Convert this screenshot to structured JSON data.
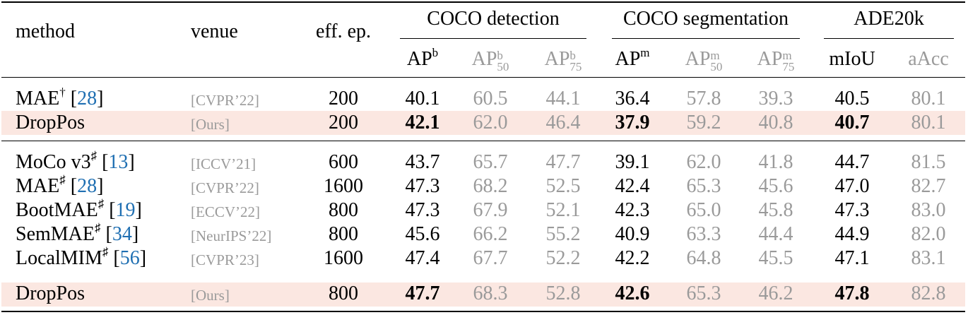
{
  "header": {
    "method": "method",
    "venue": "venue",
    "eff_ep": "eff. ep.",
    "groups": [
      "COCO detection",
      "COCO segmentation",
      "ADE20k"
    ],
    "metrics": [
      {
        "base": "AP",
        "sup": "b",
        "sub": ""
      },
      {
        "base": "AP",
        "sup": "b",
        "sub": "50"
      },
      {
        "base": "AP",
        "sup": "b",
        "sub": "75"
      },
      {
        "base": "AP",
        "sup": "m",
        "sub": ""
      },
      {
        "base": "AP",
        "sup": "m",
        "sub": "50"
      },
      {
        "base": "AP",
        "sup": "m",
        "sub": "75"
      },
      {
        "base": "mIoU",
        "sup": "",
        "sub": ""
      },
      {
        "base": "aAcc",
        "sup": "",
        "sub": ""
      }
    ]
  },
  "rows": [
    {
      "name": "MAE",
      "mark": "†",
      "ref": "28",
      "venue": "[CVPR’22]",
      "ep": "200",
      "vals": [
        "40.1",
        "60.5",
        "44.1",
        "36.4",
        "57.8",
        "39.3",
        "40.5",
        "80.1"
      ],
      "highlight": false
    },
    {
      "name": "DropPos",
      "mark": "",
      "ref": "",
      "venue": "[Ours]",
      "ep": "200",
      "vals": [
        "42.1",
        "62.0",
        "46.4",
        "37.9",
        "59.2",
        "40.8",
        "40.7",
        "80.1"
      ],
      "highlight": true
    },
    {
      "name": "MoCo v3",
      "mark": "♯",
      "ref": "13",
      "venue": "[ICCV’21]",
      "ep": "600",
      "vals": [
        "43.7",
        "65.7",
        "47.7",
        "39.1",
        "62.0",
        "41.8",
        "44.7",
        "81.5"
      ],
      "highlight": false
    },
    {
      "name": "MAE",
      "mark": "♯",
      "ref": "28",
      "venue": "[CVPR’22]",
      "ep": "1600",
      "vals": [
        "47.3",
        "68.2",
        "52.5",
        "42.4",
        "65.3",
        "45.6",
        "47.0",
        "82.7"
      ],
      "highlight": false
    },
    {
      "name": "BootMAE",
      "mark": "♯",
      "ref": "19",
      "venue": "[ECCV’22]",
      "ep": "800",
      "vals": [
        "47.3",
        "67.9",
        "52.1",
        "42.3",
        "65.0",
        "45.8",
        "47.3",
        "83.0"
      ],
      "highlight": false
    },
    {
      "name": "SemMAE",
      "mark": "♯",
      "ref": "34",
      "venue": "[NeurIPS’22]",
      "ep": "800",
      "vals": [
        "45.6",
        "66.2",
        "55.2",
        "40.9",
        "63.3",
        "44.4",
        "44.9",
        "82.0"
      ],
      "highlight": false
    },
    {
      "name": "LocalMIM",
      "mark": "♯",
      "ref": "56",
      "venue": "[CVPR’23]",
      "ep": "1600",
      "vals": [
        "47.4",
        "67.7",
        "52.2",
        "42.2",
        "64.8",
        "45.5",
        "47.1",
        "83.1"
      ],
      "highlight": false
    },
    {
      "name": "DropPos",
      "mark": "",
      "ref": "",
      "venue": "[Ours]",
      "ep": "800",
      "vals": [
        "47.7",
        "68.3",
        "52.8",
        "42.6",
        "65.3",
        "46.2",
        "47.8",
        "82.8"
      ],
      "highlight": true
    }
  ],
  "style": {
    "highlight_color": "#fbe7e1",
    "gray_text": "#9a9a9a",
    "ref_color": "#1f6fb2",
    "bold_columns": [
      0,
      3,
      6
    ],
    "gray_columns": [
      1,
      2,
      4,
      5,
      7
    ]
  }
}
